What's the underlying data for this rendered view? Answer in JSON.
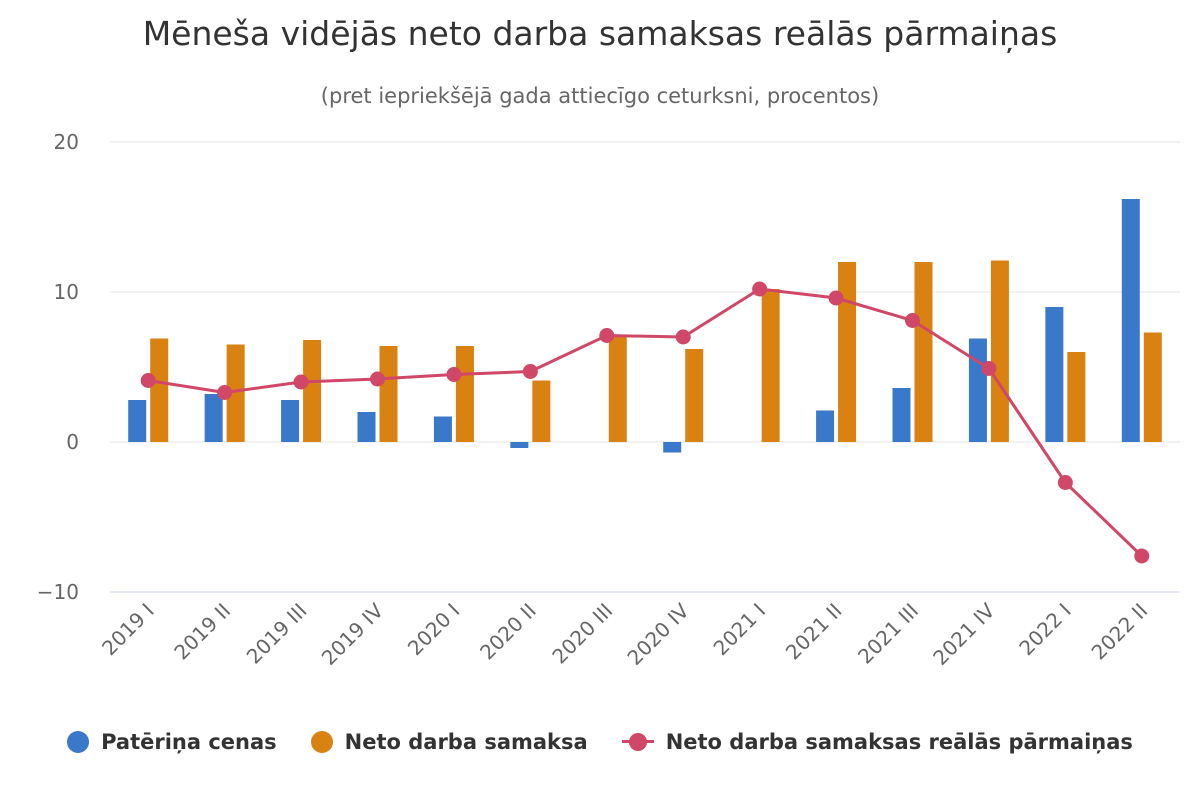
{
  "chart_data": {
    "type": "bar",
    "title": "Mēneša vidējās neto darba samaksas reālās pārmaiņas",
    "subtitle": "(pret iepriekšējā gada attiecīgo ceturksni, procentos)",
    "categories": [
      "2019 I",
      "2019 II",
      "2019 III",
      "2019 IV",
      "2020 I",
      "2020 II",
      "2020 III",
      "2020 IV",
      "2021 I",
      "2021 II",
      "2021 III",
      "2021 IV",
      "2022 I",
      "2022 II"
    ],
    "ylim": [
      -10,
      20
    ],
    "yticks": [
      20,
      10,
      0,
      -10
    ],
    "ytick_labels": [
      "20",
      "10",
      "0",
      "−10"
    ],
    "grid": true,
    "legend_position": "bottom",
    "series": [
      {
        "name": "Patēriņa cenas",
        "type": "bar",
        "color": "#3a78c9",
        "values": [
          2.8,
          3.2,
          2.8,
          2.0,
          1.7,
          -0.4,
          0.0,
          -0.7,
          0.0,
          2.1,
          3.6,
          6.9,
          9.0,
          16.2
        ]
      },
      {
        "name": "Neto darba samaksa",
        "type": "bar",
        "color": "#d98212",
        "values": [
          6.9,
          6.5,
          6.8,
          6.4,
          6.4,
          4.1,
          7.1,
          6.2,
          10.2,
          12.0,
          12.0,
          12.1,
          6.0,
          7.3
        ]
      },
      {
        "name": "Neto darba samaksas reālās pārmaiņas",
        "type": "line",
        "color": "#d04768",
        "values": [
          4.1,
          3.3,
          4.0,
          4.2,
          4.5,
          4.7,
          7.1,
          7.0,
          10.2,
          9.6,
          8.1,
          4.9,
          -2.7,
          -7.6
        ]
      }
    ]
  }
}
